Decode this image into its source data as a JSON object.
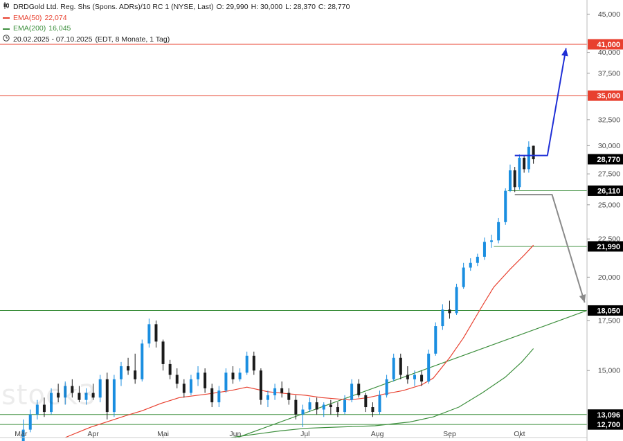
{
  "legend": {
    "instrument": "DRDGold Ltd. Reg. Shs (Spons. ADRs)/10 RC 1 (NYSE, Last)",
    "open": "O: 29,990",
    "high": "H: 30,000",
    "low": "L: 28,370",
    "close": "C: 28,770",
    "ema50_label": "EMA(50)",
    "ema50_value": "22,074",
    "ema200_label": "EMA(200)",
    "ema200_value": "16,045",
    "range": "20.02.2025 - 07.10.2025",
    "range_info": "(EDT, 8 Monate, 1 Tag)",
    "chart_icon": "candlestick-icon",
    "clock_icon": "clock-icon"
  },
  "watermark": "stock3",
  "colors": {
    "up": "#1a8ee0",
    "down": "#1b1b1b",
    "ema50": "#e8402f",
    "ema200": "#3d8f3d",
    "resistance": "#e8402f",
    "support": "#3d8f3d",
    "arrow_up": "#1f2fd6",
    "arrow_down": "#8a8a8a",
    "price_badge": "#000000"
  },
  "chart_data": {
    "type": "candlestick",
    "title": "DRDGold Ltd. Reg. Shs (Spons. ADRs)/10 RC 1 (NYSE, Last)",
    "y_scale": "log",
    "ylim": [
      12.2,
      47.0
    ],
    "y_ticks": [
      {
        "value": 15,
        "label": "15,000"
      },
      {
        "value": 17.5,
        "label": "17,500"
      },
      {
        "value": 20,
        "label": "20,000"
      },
      {
        "value": 22.5,
        "label": "22,500"
      },
      {
        "value": 25,
        "label": "25,000"
      },
      {
        "value": 27.5,
        "label": "27,500"
      },
      {
        "value": 30,
        "label": "30,000"
      },
      {
        "value": 32.5,
        "label": "32,500"
      },
      {
        "value": 35,
        "label": "35,000"
      },
      {
        "value": 37.5,
        "label": "37,500"
      },
      {
        "value": 40,
        "label": "40,000"
      },
      {
        "value": 45,
        "label": "45,000"
      }
    ],
    "x_ticks": [
      {
        "date": "2025-03-01",
        "label": "Mär"
      },
      {
        "date": "2025-04-01",
        "label": "Apr"
      },
      {
        "date": "2025-05-01",
        "label": "Mai"
      },
      {
        "date": "2025-06-01",
        "label": "Jun"
      },
      {
        "date": "2025-07-01",
        "label": "Jul"
      },
      {
        "date": "2025-08-01",
        "label": "Aug"
      },
      {
        "date": "2025-09-01",
        "label": "Sep"
      },
      {
        "date": "2025-10-01",
        "label": "Okt"
      }
    ],
    "x_range": [
      "2025-02-20",
      "2025-10-30"
    ],
    "levels": [
      {
        "value": 41.0,
        "label": "41,000",
        "kind": "resistance"
      },
      {
        "value": 35.0,
        "label": "35,000",
        "kind": "resistance"
      },
      {
        "value": 26.11,
        "label": "26,110",
        "kind": "support",
        "from": "2025-09-26"
      },
      {
        "value": 21.99,
        "label": "21,990",
        "kind": "support",
        "from": "2025-09-20"
      },
      {
        "value": 18.05,
        "label": "18,050",
        "kind": "support"
      },
      {
        "value": 13.096,
        "label": "13,096",
        "kind": "support"
      },
      {
        "value": 12.7,
        "label": "12,700",
        "kind": "support"
      }
    ],
    "last_price": {
      "value": 28.77,
      "label": "28,770"
    },
    "trendline": {
      "points": [
        [
          "2025-06-02",
          12.2
        ],
        [
          "2025-10-30",
          18.05
        ]
      ]
    },
    "ema50": [
      [
        "2025-03-20",
        12.2
      ],
      [
        "2025-03-31",
        12.6
      ],
      [
        "2025-04-15",
        13.05
      ],
      [
        "2025-04-22",
        13.25
      ],
      [
        "2025-04-30",
        13.55
      ],
      [
        "2025-05-08",
        13.8
      ],
      [
        "2025-05-20",
        13.95
      ],
      [
        "2025-05-30",
        14.1
      ],
      [
        "2025-06-06",
        14.25
      ],
      [
        "2025-06-15",
        14.05
      ],
      [
        "2025-06-25",
        13.95
      ],
      [
        "2025-07-01",
        13.9
      ],
      [
        "2025-07-08",
        13.8
      ],
      [
        "2025-07-20",
        13.7
      ],
      [
        "2025-07-28",
        13.8
      ],
      [
        "2025-08-04",
        13.95
      ],
      [
        "2025-08-12",
        14.1
      ],
      [
        "2025-08-20",
        14.35
      ],
      [
        "2025-08-25",
        14.65
      ],
      [
        "2025-09-01",
        15.6
      ],
      [
        "2025-09-07",
        16.6
      ],
      [
        "2025-09-15",
        18.3
      ],
      [
        "2025-09-20",
        19.4
      ],
      [
        "2025-09-27",
        20.5
      ],
      [
        "2025-10-03",
        21.4
      ],
      [
        "2025-10-07",
        22.07
      ]
    ],
    "ema200": [
      [
        "2025-05-30",
        12.2
      ],
      [
        "2025-06-20",
        12.45
      ],
      [
        "2025-07-01",
        12.55
      ],
      [
        "2025-07-15",
        12.6
      ],
      [
        "2025-07-31",
        12.65
      ],
      [
        "2025-08-15",
        12.8
      ],
      [
        "2025-08-25",
        13.0
      ],
      [
        "2025-09-05",
        13.4
      ],
      [
        "2025-09-15",
        14.0
      ],
      [
        "2025-09-25",
        14.7
      ],
      [
        "2025-10-02",
        15.4
      ],
      [
        "2025-10-07",
        16.05
      ]
    ],
    "forecast_up": [
      [
        "2025-09-29",
        29.1
      ],
      [
        "2025-10-13",
        29.1
      ],
      [
        "2025-10-21",
        40.5
      ]
    ],
    "forecast_down": [
      [
        "2025-09-29",
        25.8
      ],
      [
        "2025-10-15",
        25.8
      ],
      [
        "2025-10-29",
        18.5
      ]
    ],
    "ohlc": [
      [
        "2025-03-02",
        11.5,
        12.9,
        11.3,
        12.5
      ],
      [
        "2025-03-05",
        12.5,
        13.3,
        12.4,
        13.1
      ],
      [
        "2025-03-08",
        13.1,
        13.7,
        12.9,
        13.5
      ],
      [
        "2025-03-11",
        13.5,
        13.8,
        13.0,
        13.2
      ],
      [
        "2025-03-14",
        13.2,
        14.2,
        13.1,
        14.0
      ],
      [
        "2025-03-17",
        14.0,
        14.4,
        13.6,
        13.8
      ],
      [
        "2025-03-20",
        13.8,
        14.5,
        13.5,
        14.3
      ],
      [
        "2025-03-23",
        14.3,
        14.6,
        13.8,
        14.0
      ],
      [
        "2025-03-26",
        14.0,
        14.3,
        13.6,
        13.7
      ],
      [
        "2025-03-29",
        13.7,
        14.2,
        13.5,
        14.0
      ],
      [
        "2025-04-01",
        14.0,
        14.4,
        13.7,
        13.8
      ],
      [
        "2025-04-04",
        13.8,
        14.8,
        13.6,
        14.6
      ],
      [
        "2025-04-07",
        14.6,
        14.9,
        12.9,
        13.2
      ],
      [
        "2025-04-10",
        13.2,
        14.8,
        13.0,
        14.6
      ],
      [
        "2025-04-13",
        14.6,
        15.4,
        14.3,
        15.2
      ],
      [
        "2025-04-16",
        15.2,
        15.6,
        14.8,
        15.0
      ],
      [
        "2025-04-19",
        15.0,
        15.8,
        14.4,
        14.6
      ],
      [
        "2025-04-22",
        14.6,
        16.5,
        14.5,
        16.3
      ],
      [
        "2025-04-25",
        16.3,
        17.6,
        16.1,
        17.3
      ],
      [
        "2025-04-28",
        17.3,
        17.5,
        16.1,
        16.4
      ],
      [
        "2025-05-01",
        16.4,
        16.5,
        15.0,
        15.3
      ],
      [
        "2025-05-04",
        15.3,
        15.5,
        14.6,
        14.8
      ],
      [
        "2025-05-07",
        14.8,
        15.1,
        14.2,
        14.4
      ],
      [
        "2025-05-10",
        14.4,
        14.6,
        13.8,
        14.0
      ],
      [
        "2025-05-13",
        14.0,
        14.8,
        13.9,
        14.6
      ],
      [
        "2025-05-16",
        14.6,
        15.2,
        14.3,
        14.9
      ],
      [
        "2025-05-19",
        14.9,
        15.1,
        14.0,
        14.2
      ],
      [
        "2025-05-22",
        14.2,
        14.4,
        13.4,
        13.6
      ],
      [
        "2025-05-25",
        13.6,
        14.3,
        13.4,
        14.1
      ],
      [
        "2025-05-28",
        14.1,
        15.1,
        14.0,
        14.9
      ],
      [
        "2025-05-31",
        14.9,
        15.2,
        14.4,
        14.6
      ],
      [
        "2025-06-03",
        14.6,
        15.1,
        14.5,
        14.9
      ],
      [
        "2025-06-06",
        14.9,
        15.9,
        14.8,
        15.7
      ],
      [
        "2025-06-09",
        15.7,
        15.9,
        14.8,
        15.0
      ],
      [
        "2025-06-12",
        15.0,
        15.1,
        13.5,
        13.7
      ],
      [
        "2025-06-15",
        13.7,
        14.1,
        13.4,
        13.9
      ],
      [
        "2025-06-18",
        13.9,
        14.4,
        13.7,
        14.2
      ],
      [
        "2025-06-21",
        14.2,
        14.5,
        13.8,
        14.0
      ],
      [
        "2025-06-24",
        14.0,
        14.2,
        13.5,
        13.7
      ],
      [
        "2025-06-27",
        13.7,
        13.9,
        12.9,
        13.1
      ],
      [
        "2025-06-30",
        13.1,
        13.5,
        12.6,
        13.3
      ],
      [
        "2025-07-03",
        13.3,
        13.8,
        13.2,
        13.6
      ],
      [
        "2025-07-06",
        13.6,
        13.8,
        13.1,
        13.3
      ],
      [
        "2025-07-09",
        13.3,
        13.6,
        13.0,
        13.5
      ],
      [
        "2025-07-12",
        13.5,
        13.7,
        13.1,
        13.4
      ],
      [
        "2025-07-15",
        13.4,
        13.6,
        13.0,
        13.2
      ],
      [
        "2025-07-18",
        13.2,
        13.9,
        13.1,
        13.7
      ],
      [
        "2025-07-21",
        13.7,
        14.6,
        13.6,
        14.4
      ],
      [
        "2025-07-24",
        14.4,
        14.6,
        13.8,
        13.9
      ],
      [
        "2025-07-27",
        13.9,
        14.0,
        13.2,
        13.4
      ],
      [
        "2025-07-30",
        13.4,
        13.6,
        13.0,
        13.2
      ],
      [
        "2025-08-02",
        13.2,
        14.1,
        13.1,
        13.9
      ],
      [
        "2025-08-05",
        13.9,
        14.8,
        13.8,
        14.6
      ],
      [
        "2025-08-08",
        14.6,
        15.8,
        14.5,
        15.6
      ],
      [
        "2025-08-11",
        15.6,
        15.8,
        14.6,
        14.8
      ],
      [
        "2025-08-14",
        14.8,
        15.2,
        14.4,
        14.6
      ],
      [
        "2025-08-17",
        14.6,
        15.0,
        14.3,
        14.8
      ],
      [
        "2025-08-20",
        14.8,
        15.0,
        14.3,
        14.5
      ],
      [
        "2025-08-23",
        14.5,
        16.0,
        14.4,
        15.8
      ],
      [
        "2025-08-26",
        15.8,
        17.4,
        15.7,
        17.2
      ],
      [
        "2025-08-29",
        17.2,
        18.4,
        17.0,
        18.1
      ],
      [
        "2025-09-01",
        18.1,
        18.6,
        17.6,
        17.9
      ],
      [
        "2025-09-04",
        17.9,
        19.6,
        17.8,
        19.4
      ],
      [
        "2025-09-07",
        19.4,
        20.9,
        19.3,
        20.6
      ],
      [
        "2025-09-10",
        20.6,
        21.2,
        20.4,
        20.9
      ],
      [
        "2025-09-13",
        20.9,
        21.5,
        20.7,
        21.3
      ],
      [
        "2025-09-16",
        21.3,
        22.6,
        21.1,
        22.3
      ],
      [
        "2025-09-19",
        22.3,
        22.8,
        21.9,
        22.4
      ],
      [
        "2025-09-22",
        22.4,
        24.0,
        22.2,
        23.7
      ],
      [
        "2025-09-25",
        23.7,
        26.3,
        23.5,
        26.1
      ],
      [
        "2025-09-27",
        26.1,
        28.3,
        26.0,
        27.8
      ],
      [
        "2025-09-29",
        27.8,
        28.1,
        26.0,
        26.4
      ],
      [
        "2025-10-01",
        26.4,
        29.2,
        26.2,
        28.9
      ],
      [
        "2025-10-03",
        28.9,
        29.1,
        27.6,
        27.9
      ],
      [
        "2025-10-05",
        27.9,
        30.4,
        27.6,
        29.9
      ],
      [
        "2025-10-07",
        29.99,
        30.0,
        28.37,
        28.77
      ]
    ]
  }
}
